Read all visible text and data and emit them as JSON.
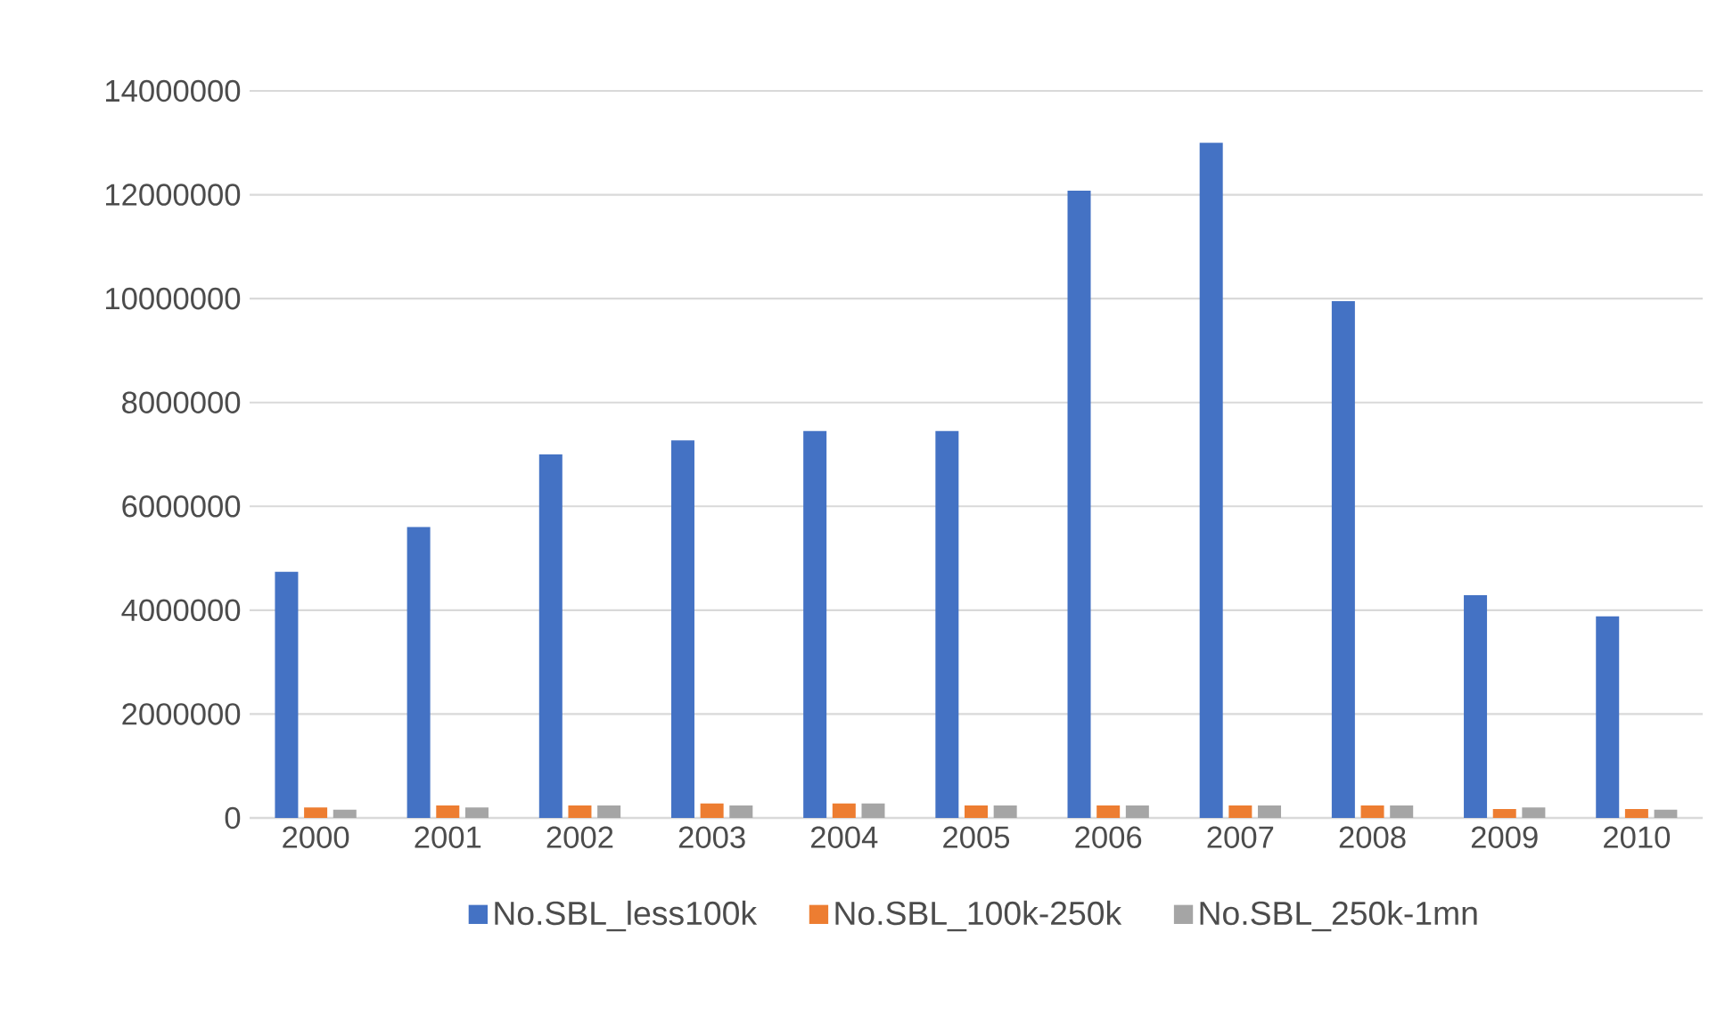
{
  "chart_data": {
    "type": "bar",
    "categories": [
      "2000",
      "2001",
      "2002",
      "2003",
      "2004",
      "2005",
      "2006",
      "2007",
      "2008",
      "2009",
      "2010"
    ],
    "series": [
      {
        "name": "No.SBL_less100k",
        "color": "#4472c4",
        "values": [
          4740000,
          5600000,
          7000000,
          7270000,
          7450000,
          7450000,
          12080000,
          13000000,
          9950000,
          4290000,
          3880000
        ]
      },
      {
        "name": "No.SBL_100k-250k",
        "color": "#ed7d31",
        "values": [
          200000,
          240000,
          240000,
          280000,
          280000,
          240000,
          240000,
          240000,
          240000,
          170000,
          170000
        ]
      },
      {
        "name": "No.SBL_250k-1mn",
        "color": "#a5a5a5",
        "values": [
          160000,
          200000,
          240000,
          240000,
          280000,
          240000,
          240000,
          240000,
          240000,
          200000,
          160000
        ]
      }
    ],
    "ylim": [
      0,
      14000000
    ],
    "yticks": [
      0,
      2000000,
      4000000,
      6000000,
      8000000,
      10000000,
      12000000,
      14000000
    ],
    "grid": "y",
    "legend": "bottom"
  }
}
